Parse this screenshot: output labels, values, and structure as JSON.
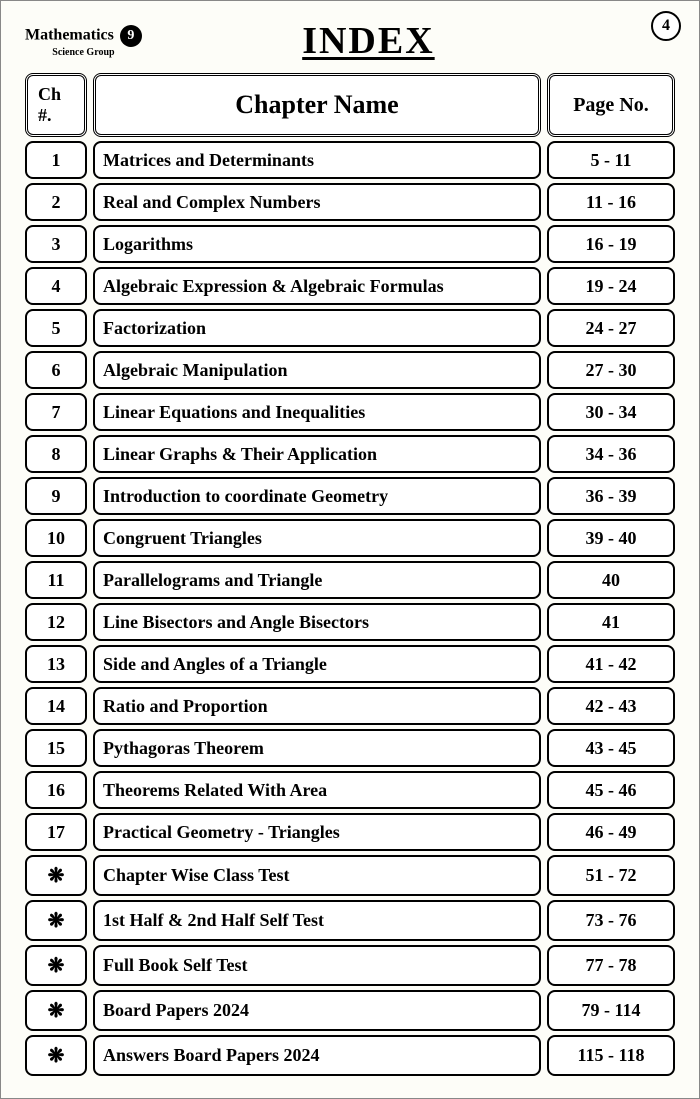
{
  "page_number": "4",
  "book": {
    "title": "Mathematics",
    "subtitle": "Science Group",
    "grade": "9"
  },
  "main_title": "INDEX",
  "headers": {
    "ch": "Ch #.",
    "name": "Chapter Name",
    "page": "Page No."
  },
  "rows": [
    {
      "ch": "1",
      "name": "Matrices and Determinants",
      "page": "5 - 11"
    },
    {
      "ch": "2",
      "name": "Real and Complex Numbers",
      "page": "11 - 16"
    },
    {
      "ch": "3",
      "name": "Logarithms",
      "page": "16 - 19"
    },
    {
      "ch": "4",
      "name": "Algebraic Expression & Algebraic Formulas",
      "page": "19 - 24"
    },
    {
      "ch": "5",
      "name": "Factorization",
      "page": "24 - 27"
    },
    {
      "ch": "6",
      "name": "Algebraic Manipulation",
      "page": "27 - 30"
    },
    {
      "ch": "7",
      "name": "Linear Equations and Inequalities",
      "page": "30 - 34"
    },
    {
      "ch": "8",
      "name": "Linear Graphs & Their Application",
      "page": "34 - 36"
    },
    {
      "ch": "9",
      "name": "Introduction to coordinate Geometry",
      "page": "36 - 39"
    },
    {
      "ch": "10",
      "name": "Congruent Triangles",
      "page": "39 - 40"
    },
    {
      "ch": "11",
      "name": "Parallelograms and Triangle",
      "page": "40"
    },
    {
      "ch": "12",
      "name": "Line Bisectors and Angle Bisectors",
      "page": "41"
    },
    {
      "ch": "13",
      "name": "Side and Angles of a Triangle",
      "page": "41 - 42"
    },
    {
      "ch": "14",
      "name": "Ratio and Proportion",
      "page": "42 - 43"
    },
    {
      "ch": "15",
      "name": "Pythagoras Theorem",
      "page": "43 - 45"
    },
    {
      "ch": "16",
      "name": "Theorems Related With Area",
      "page": "45 - 46"
    },
    {
      "ch": "17",
      "name": "Practical Geometry - Triangles",
      "page": "46 - 49"
    },
    {
      "ch": "❋",
      "name": "Chapter Wise Class Test",
      "page": "51 - 72"
    },
    {
      "ch": "❋",
      "name": "1st Half & 2nd Half Self Test",
      "page": "73 - 76"
    },
    {
      "ch": "❋",
      "name": "Full Book Self Test",
      "page": "77 - 78"
    },
    {
      "ch": "❋",
      "name": "Board Papers 2024",
      "page": "79 - 114"
    },
    {
      "ch": "❋",
      "name": "Answers Board Papers 2024",
      "page": "115 - 118"
    }
  ],
  "colors": {
    "page_bg": "#fdfdf8",
    "border": "#000000",
    "text": "#000000"
  },
  "typography": {
    "title_fontsize": 38,
    "header_fontsize": 22,
    "body_fontsize": 18
  }
}
